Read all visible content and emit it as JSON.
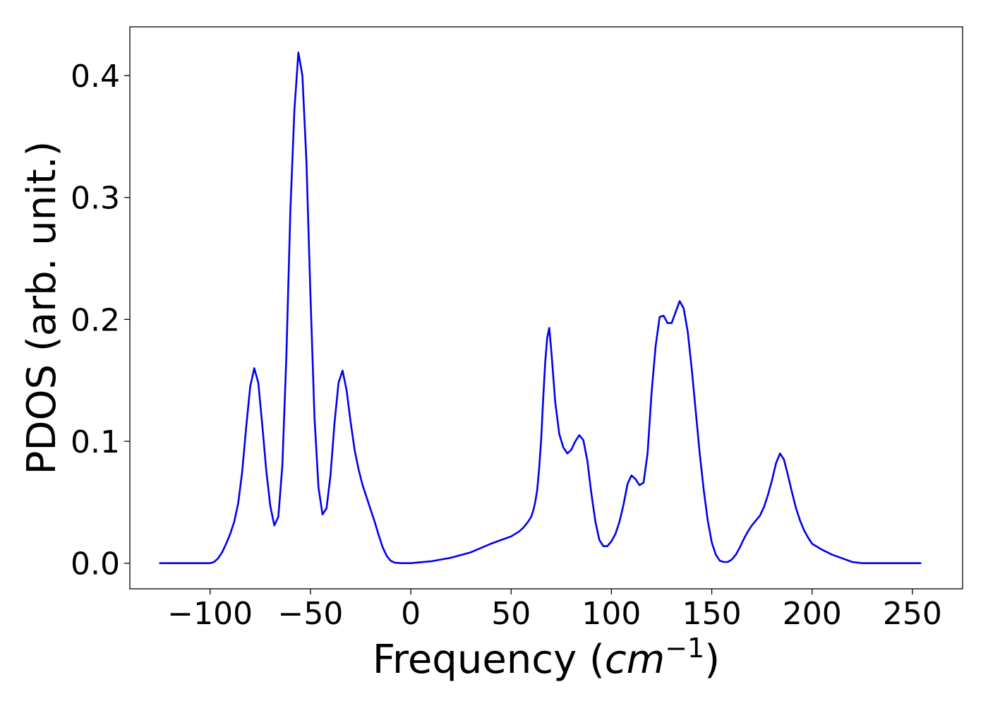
{
  "chart_data": {
    "type": "line",
    "title": "",
    "xlabel": "Frequency (",
    "xlabel_math": "cm",
    "xlabel_sup": "−1",
    "xlabel_close": ")",
    "ylabel": "PDOS (arb. unit.)",
    "xlim": [
      -140,
      275
    ],
    "ylim": [
      -0.021,
      0.44
    ],
    "grid": false,
    "legend": "none",
    "x_ticks": [
      -100,
      -50,
      0,
      50,
      100,
      150,
      200,
      250
    ],
    "x_tick_labels": [
      "−100",
      "−50",
      "0",
      "50",
      "100",
      "150",
      "200",
      "250"
    ],
    "y_ticks": [
      0.0,
      0.1,
      0.2,
      0.3,
      0.4
    ],
    "y_tick_labels": [
      "0.0",
      "0.1",
      "0.2",
      "0.3",
      "0.4"
    ],
    "series": [
      {
        "color": "#0000ee",
        "x": [
          -125,
          -100,
          -98,
          -96,
          -94,
          -92,
          -90,
          -88,
          -86,
          -84,
          -82,
          -80,
          -78,
          -76,
          -74,
          -72,
          -70,
          -68,
          -66,
          -64,
          -62,
          -60,
          -58,
          -56,
          -54,
          -52,
          -50,
          -48,
          -46,
          -44,
          -42,
          -40,
          -38,
          -36,
          -34,
          -32,
          -30,
          -28,
          -26,
          -24,
          -22,
          -20,
          -18,
          -16,
          -14,
          -12,
          -10,
          -8,
          -5,
          0,
          10,
          20,
          30,
          40,
          45,
          50,
          52,
          54,
          56,
          58,
          60,
          61,
          62,
          63,
          64,
          65,
          66,
          67,
          68,
          69,
          70,
          72,
          74,
          76,
          78,
          80,
          82,
          84,
          86,
          88,
          90,
          92,
          94,
          96,
          98,
          100,
          102,
          104,
          106,
          108,
          110,
          112,
          114,
          116,
          118,
          120,
          122,
          124,
          126,
          128,
          130,
          132,
          134,
          136,
          138,
          140,
          142,
          144,
          146,
          148,
          150,
          152,
          154,
          156,
          158,
          160,
          162,
          164,
          166,
          168,
          170,
          172,
          174,
          176,
          178,
          180,
          182,
          184,
          186,
          188,
          190,
          192,
          194,
          196,
          198,
          200,
          205,
          210,
          215,
          220,
          225,
          230,
          240,
          254
        ],
        "y": [
          0.0,
          0.0,
          0.001,
          0.004,
          0.009,
          0.016,
          0.024,
          0.034,
          0.049,
          0.075,
          0.112,
          0.145,
          0.16,
          0.148,
          0.113,
          0.076,
          0.047,
          0.031,
          0.038,
          0.08,
          0.17,
          0.29,
          0.372,
          0.419,
          0.4,
          0.33,
          0.22,
          0.12,
          0.062,
          0.04,
          0.045,
          0.072,
          0.115,
          0.148,
          0.158,
          0.142,
          0.116,
          0.093,
          0.077,
          0.064,
          0.054,
          0.044,
          0.034,
          0.023,
          0.013,
          0.006,
          0.002,
          0.0005,
          0.0,
          0.0,
          0.0015,
          0.0045,
          0.009,
          0.016,
          0.019,
          0.022,
          0.024,
          0.026,
          0.029,
          0.033,
          0.038,
          0.043,
          0.05,
          0.06,
          0.078,
          0.102,
          0.135,
          0.165,
          0.185,
          0.193,
          0.175,
          0.132,
          0.106,
          0.095,
          0.09,
          0.093,
          0.1,
          0.105,
          0.101,
          0.084,
          0.057,
          0.034,
          0.019,
          0.014,
          0.014,
          0.018,
          0.024,
          0.034,
          0.048,
          0.065,
          0.072,
          0.069,
          0.064,
          0.066,
          0.09,
          0.14,
          0.178,
          0.202,
          0.203,
          0.197,
          0.197,
          0.206,
          0.215,
          0.209,
          0.19,
          0.16,
          0.125,
          0.09,
          0.06,
          0.035,
          0.017,
          0.007,
          0.002,
          0.001,
          0.001,
          0.003,
          0.007,
          0.013,
          0.02,
          0.026,
          0.031,
          0.035,
          0.039,
          0.046,
          0.056,
          0.068,
          0.082,
          0.09,
          0.085,
          0.072,
          0.058,
          0.045,
          0.035,
          0.027,
          0.021,
          0.016,
          0.011,
          0.007,
          0.004,
          0.001,
          0.0,
          0.0,
          0.0,
          0.0
        ]
      }
    ]
  }
}
